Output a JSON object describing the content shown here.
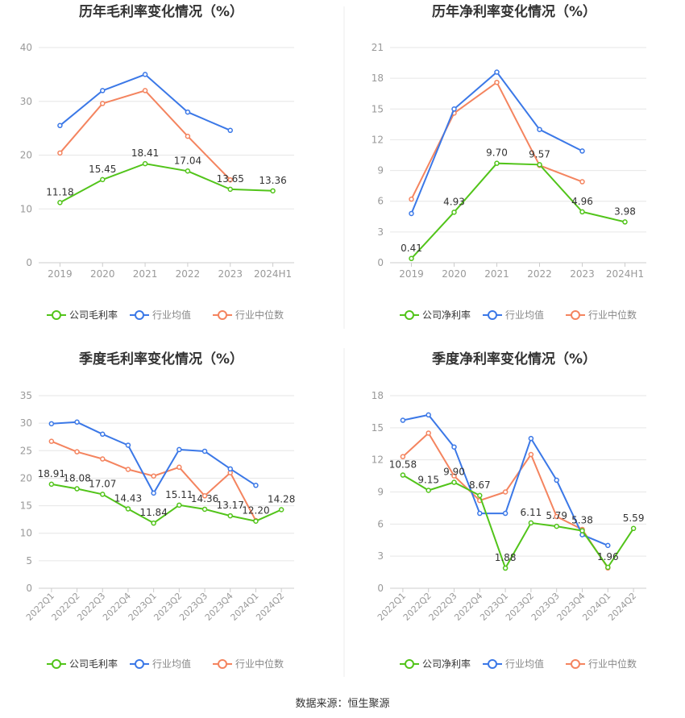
{
  "source_text": "数据来源：恒生聚源",
  "colors": {
    "company": "#52c41a",
    "avg": "#3b78e7",
    "median": "#f4845f",
    "grid": "#e6e6e6",
    "axis": "#999999",
    "text": "#333333"
  },
  "chart_data": [
    {
      "type": "line",
      "title": "历年毛利率变化情况（%）",
      "categories": [
        "2019",
        "2020",
        "2021",
        "2022",
        "2023",
        "2024H1"
      ],
      "ylim": [
        0,
        40
      ],
      "yticks": [
        0,
        10,
        20,
        30,
        40
      ],
      "xlabel_rotate": false,
      "legend": [
        "公司毛利率",
        "行业均值",
        "行业中位数"
      ],
      "series": [
        {
          "name": "公司毛利率",
          "color": "#52c41a",
          "labels": true,
          "values": [
            11.18,
            15.45,
            18.41,
            17.04,
            13.65,
            13.36
          ]
        },
        {
          "name": "行业均值",
          "color": "#3b78e7",
          "labels": false,
          "values": [
            25.5,
            32.0,
            35.0,
            28.0,
            24.6,
            null
          ]
        },
        {
          "name": "行业中位数",
          "color": "#f4845f",
          "labels": false,
          "values": [
            20.4,
            29.6,
            32.0,
            23.5,
            15.4,
            null
          ]
        }
      ]
    },
    {
      "type": "line",
      "title": "历年净利率变化情况（%）",
      "categories": [
        "2019",
        "2020",
        "2021",
        "2022",
        "2023",
        "2024H1"
      ],
      "ylim": [
        0,
        21
      ],
      "yticks": [
        0,
        3,
        6,
        9,
        12,
        15,
        18,
        21
      ],
      "xlabel_rotate": false,
      "legend": [
        "公司净利率",
        "行业均值",
        "行业中位数"
      ],
      "series": [
        {
          "name": "公司净利率",
          "color": "#52c41a",
          "labels": true,
          "values": [
            0.41,
            4.93,
            9.7,
            9.57,
            4.96,
            3.98
          ]
        },
        {
          "name": "行业均值",
          "color": "#3b78e7",
          "labels": false,
          "values": [
            4.8,
            15.0,
            18.6,
            13.0,
            10.9,
            null
          ]
        },
        {
          "name": "行业中位数",
          "color": "#f4845f",
          "labels": false,
          "values": [
            6.2,
            14.6,
            17.6,
            9.5,
            7.9,
            null
          ]
        }
      ]
    },
    {
      "type": "line",
      "title": "季度毛利率变化情况（%）",
      "categories": [
        "2022Q1",
        "2022Q2",
        "2022Q3",
        "2022Q4",
        "2023Q1",
        "2023Q2",
        "2023Q3",
        "2023Q4",
        "2024Q1",
        "2024Q2"
      ],
      "ylim": [
        0,
        35
      ],
      "yticks": [
        0,
        5,
        10,
        15,
        20,
        25,
        30,
        35
      ],
      "xlabel_rotate": true,
      "legend": [
        "公司毛利率",
        "行业均值",
        "行业中位数"
      ],
      "series": [
        {
          "name": "公司毛利率",
          "color": "#52c41a",
          "labels": true,
          "values": [
            18.91,
            18.08,
            17.07,
            14.43,
            11.84,
            15.11,
            14.36,
            13.17,
            12.2,
            14.28
          ]
        },
        {
          "name": "行业均值",
          "color": "#3b78e7",
          "labels": false,
          "values": [
            29.9,
            30.2,
            28.0,
            26.0,
            17.3,
            25.2,
            24.9,
            21.7,
            18.7,
            null
          ]
        },
        {
          "name": "行业中位数",
          "color": "#f4845f",
          "labels": false,
          "values": [
            26.7,
            24.8,
            23.5,
            21.6,
            20.4,
            22.0,
            16.8,
            21.0,
            12.3,
            null
          ]
        }
      ]
    },
    {
      "type": "line",
      "title": "季度净利率变化情况（%）",
      "categories": [
        "2022Q1",
        "2022Q2",
        "2022Q3",
        "2022Q4",
        "2023Q1",
        "2023Q2",
        "2023Q3",
        "2023Q4",
        "2024Q1",
        "2024Q2"
      ],
      "ylim": [
        0,
        18
      ],
      "yticks": [
        0,
        3,
        6,
        9,
        12,
        15,
        18
      ],
      "xlabel_rotate": true,
      "legend": [
        "公司净利率",
        "行业均值",
        "行业中位数"
      ],
      "series": [
        {
          "name": "公司净利率",
          "color": "#52c41a",
          "labels": true,
          "values": [
            10.58,
            9.15,
            9.9,
            8.67,
            1.88,
            6.11,
            5.79,
            5.38,
            1.96,
            5.59
          ]
        },
        {
          "name": "行业均值",
          "color": "#3b78e7",
          "labels": false,
          "values": [
            15.7,
            16.2,
            13.2,
            7.0,
            7.0,
            14.0,
            10.1,
            5.0,
            4.0,
            null
          ]
        },
        {
          "name": "行业中位数",
          "color": "#f4845f",
          "labels": false,
          "values": [
            12.3,
            14.5,
            10.5,
            8.2,
            9.0,
            12.5,
            6.7,
            5.5,
            1.9,
            null
          ]
        }
      ]
    }
  ]
}
